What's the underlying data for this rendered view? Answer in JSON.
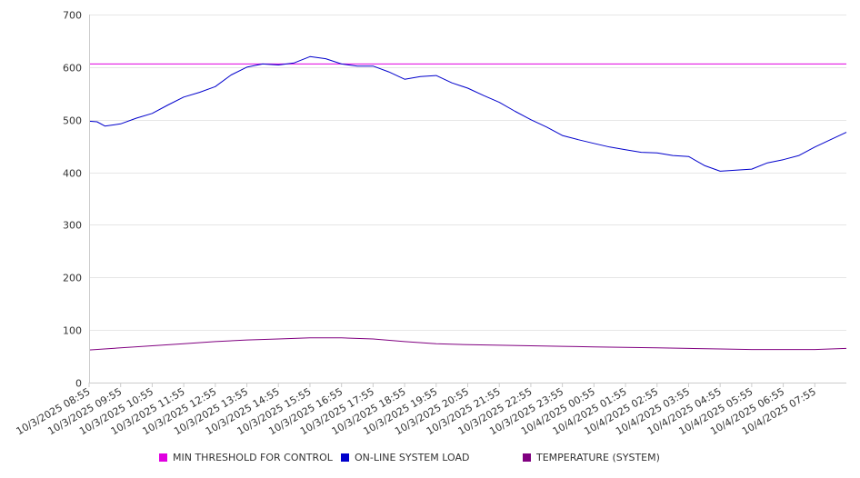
{
  "chart_data": {
    "type": "line",
    "title": "",
    "xlabel": "",
    "ylabel": "",
    "ylim": [
      0,
      700
    ],
    "y_ticks": [
      0,
      100,
      200,
      300,
      400,
      500,
      600,
      700
    ],
    "x_ticks": [
      "10/3/2025 08:55",
      "10/3/2025 09:55",
      "10/3/2025 10:55",
      "10/3/2025 11:55",
      "10/3/2025 12:55",
      "10/3/2025 13:55",
      "10/3/2025 14:55",
      "10/3/2025 15:55",
      "10/3/2025 16:55",
      "10/3/2025 17:55",
      "10/3/2025 18:55",
      "10/3/2025 19:55",
      "10/3/2025 20:55",
      "10/3/2025 21:55",
      "10/3/2025 22:55",
      "10/3/2025 23:55",
      "10/4/2025 00:55",
      "10/4/2025 01:55",
      "10/4/2025 02:55",
      "10/4/2025 03:55",
      "10/4/2025 04:55",
      "10/4/2025 05:55",
      "10/4/2025 06:55",
      "10/4/2025 07:55"
    ],
    "x_range": [
      "10/3/2025 08:55",
      "10/4/2025 08:55"
    ],
    "grid": true,
    "legend_position": "bottom",
    "series": [
      {
        "name": "MIN THRESHOLD FOR CONTROL",
        "color": "#e000e0",
        "x": [
          "10/3/2025 08:55",
          "10/4/2025 08:55"
        ],
        "values": [
          606,
          606
        ]
      },
      {
        "name": "ON-LINE SYSTEM LOAD",
        "color": "#0000cc",
        "x": [
          "10/3/2025 08:55",
          "10/3/2025 09:10",
          "10/3/2025 09:25",
          "10/3/2025 09:55",
          "10/3/2025 10:25",
          "10/3/2025 10:55",
          "10/3/2025 11:25",
          "10/3/2025 11:55",
          "10/3/2025 12:25",
          "10/3/2025 12:55",
          "10/3/2025 13:25",
          "10/3/2025 13:55",
          "10/3/2025 14:25",
          "10/3/2025 14:55",
          "10/3/2025 15:25",
          "10/3/2025 15:55",
          "10/3/2025 16:25",
          "10/3/2025 16:55",
          "10/3/2025 17:25",
          "10/3/2025 17:55",
          "10/3/2025 18:25",
          "10/3/2025 18:55",
          "10/3/2025 19:25",
          "10/3/2025 19:55",
          "10/3/2025 20:25",
          "10/3/2025 20:55",
          "10/3/2025 21:25",
          "10/3/2025 21:55",
          "10/3/2025 22:25",
          "10/3/2025 22:55",
          "10/3/2025 23:25",
          "10/3/2025 23:55",
          "10/4/2025 00:25",
          "10/4/2025 00:55",
          "10/4/2025 01:25",
          "10/4/2025 01:55",
          "10/4/2025 02:25",
          "10/4/2025 02:55",
          "10/4/2025 03:25",
          "10/4/2025 03:55",
          "10/4/2025 04:25",
          "10/4/2025 04:55",
          "10/4/2025 05:25",
          "10/4/2025 05:55",
          "10/4/2025 06:25",
          "10/4/2025 06:55",
          "10/4/2025 07:25",
          "10/4/2025 07:55",
          "10/4/2025 08:25",
          "10/4/2025 08:55"
        ],
        "values": [
          497,
          496,
          488,
          492,
          503,
          512,
          528,
          543,
          552,
          563,
          585,
          600,
          606,
          604,
          608,
          620,
          616,
          606,
          602,
          602,
          591,
          577,
          582,
          584,
          570,
          560,
          546,
          533,
          516,
          500,
          486,
          470,
          462,
          455,
          448,
          443,
          438,
          437,
          432,
          430,
          413,
          402,
          404,
          406,
          418,
          424,
          432,
          448,
          462,
          476
        ]
      },
      {
        "name": "TEMPERATURE (SYSTEM)",
        "color": "#800080",
        "x": [
          "10/3/2025 08:55",
          "10/3/2025 09:55",
          "10/3/2025 10:55",
          "10/3/2025 11:55",
          "10/3/2025 12:55",
          "10/3/2025 13:55",
          "10/3/2025 14:55",
          "10/3/2025 15:55",
          "10/3/2025 16:55",
          "10/3/2025 17:55",
          "10/3/2025 18:55",
          "10/3/2025 19:55",
          "10/3/2025 20:55",
          "10/3/2025 21:55",
          "10/3/2025 22:55",
          "10/3/2025 23:55",
          "10/4/2025 00:55",
          "10/4/2025 01:55",
          "10/4/2025 02:55",
          "10/4/2025 03:55",
          "10/4/2025 04:55",
          "10/4/2025 05:55",
          "10/4/2025 06:55",
          "10/4/2025 07:55",
          "10/4/2025 08:55"
        ],
        "values": [
          62,
          66,
          70,
          74,
          78,
          81,
          83,
          85,
          85,
          83,
          78,
          74,
          72,
          71,
          70,
          69,
          68,
          67,
          66,
          65,
          64,
          63,
          63,
          63,
          65
        ]
      }
    ]
  }
}
